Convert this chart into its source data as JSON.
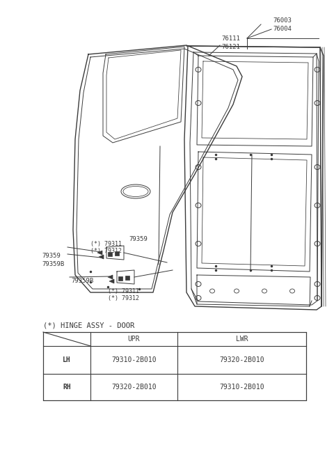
{
  "bg_color": "#ffffff",
  "line_color": "#3a3a3a",
  "title": "(*) HINGE ASSY - DOOR",
  "table_header_upr": "UPR",
  "table_header_lwr": "LWR",
  "table_rows": [
    [
      "LH",
      "79310-2B010",
      "79320-2B010"
    ],
    [
      "RH",
      "79320-2B010",
      "79310-2B010"
    ]
  ],
  "label_76003": "76003",
  "label_76004": "76004",
  "label_76111": "76111",
  "label_76121": "76121",
  "label_79311": "(*) 79311",
  "label_79312": "(*) 79312",
  "label_79359": "79359",
  "label_79359B": "79359B",
  "font_size_label": 6.5,
  "font_size_table": 7.0,
  "font_size_title": 7.5
}
